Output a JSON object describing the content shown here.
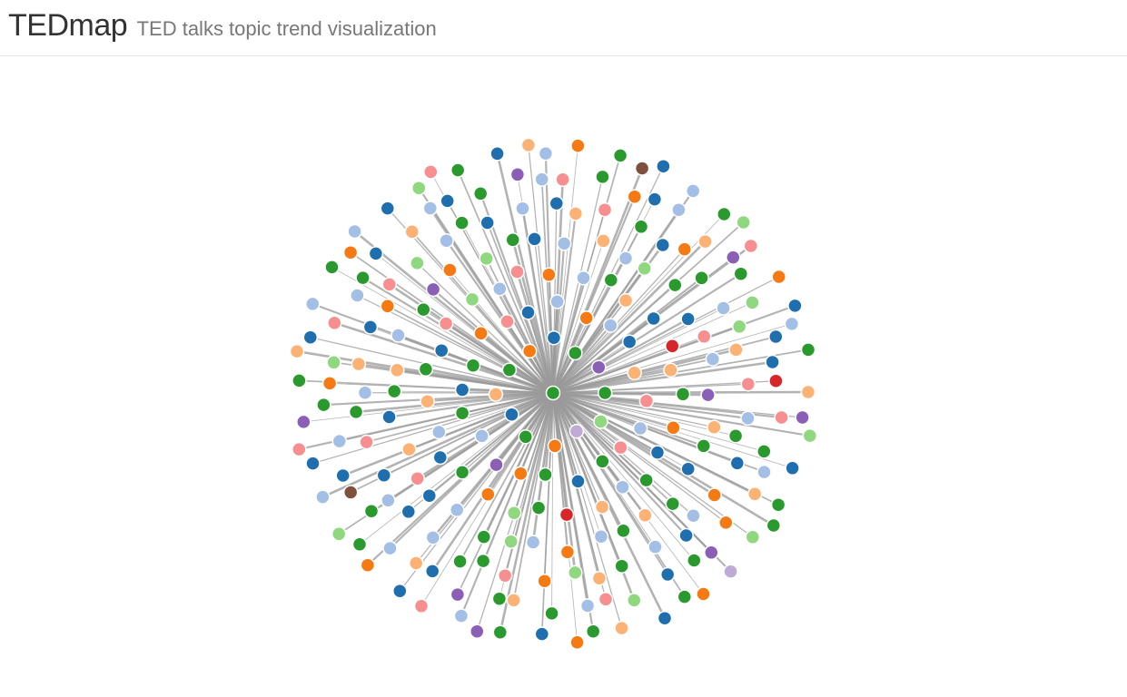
{
  "header": {
    "brand": "TEDmap",
    "tagline": "TED talks topic trend visualization"
  },
  "palette": {
    "dark_blue": "#1f6faf",
    "light_blue": "#a4bfe6",
    "green": "#2b9a2e",
    "light_green": "#8fd87f",
    "orange": "#f57a13",
    "light_orange": "#fcb274",
    "red": "#d7262a",
    "pink": "#f78e8f",
    "purple": "#8b5fb6",
    "lavender": "#c0aad6",
    "brown": "#80503e",
    "link": "#9a9a9a",
    "node_stroke": "#ffffff"
  },
  "graph": {
    "center_color": "green",
    "node_colors": [
      "green",
      "light_green",
      "lavender",
      "orange",
      "green",
      "dark_blue",
      "light_orange",
      "green",
      "orange",
      "dark_blue",
      "green",
      "purple",
      "light_blue",
      "pink",
      "green",
      "dark_blue",
      "green",
      "orange",
      "purple",
      "light_blue",
      "green",
      "dark_blue",
      "green",
      "orange",
      "pink",
      "dark_blue",
      "light_blue",
      "orange",
      "light_blue",
      "dark_blue",
      "light_orange",
      "pink",
      "green",
      "light_blue",
      "light_orange",
      "red",
      "green",
      "light_green",
      "orange",
      "green",
      "dark_blue",
      "light_blue",
      "light_orange",
      "green",
      "dark_blue",
      "pink",
      "light_green",
      "light_blue",
      "pink",
      "orange",
      "light_blue",
      "green",
      "light_orange",
      "dark_blue",
      "red",
      "light_orange",
      "green",
      "orange",
      "dark_blue",
      "green",
      "light_blue",
      "orange",
      "light_blue",
      "light_green",
      "green",
      "light_blue",
      "dark_blue",
      "pink",
      "light_orange",
      "dark_blue",
      "green",
      "light_orange",
      "light_blue",
      "green",
      "purple",
      "orange",
      "light_green",
      "green",
      "dark_blue",
      "light_blue",
      "light_orange",
      "light_blue",
      "light_green",
      "green",
      "dark_blue",
      "pink",
      "light_blue",
      "purple",
      "light_orange",
      "green",
      "dark_blue",
      "green",
      "light_orange",
      "light_green",
      "orange",
      "pink",
      "green",
      "green",
      "light_blue",
      "dark_blue",
      "light_blue",
      "dark_blue",
      "pink",
      "green",
      "light_blue",
      "light_orange",
      "dark_blue",
      "orange",
      "pink",
      "light_green",
      "light_blue",
      "green",
      "dark_blue",
      "light_blue",
      "dark_blue",
      "light_orange",
      "pink",
      "green",
      "dark_blue",
      "orange",
      "green",
      "light_blue",
      "light_green",
      "light_orange",
      "pink",
      "light_blue",
      "green",
      "dark_blue",
      "orange",
      "light_blue",
      "dark_blue",
      "light_blue",
      "green",
      "light_orange",
      "green",
      "purple",
      "dark_blue",
      "light_orange",
      "light_blue",
      "green",
      "brown",
      "dark_blue",
      "light_blue",
      "green",
      "orange",
      "light_green",
      "pink",
      "light_blue",
      "green",
      "dark_blue",
      "light_orange",
      "light_blue",
      "dark_blue",
      "green",
      "purple",
      "light_blue",
      "pink",
      "green",
      "orange",
      "dark_blue",
      "light_blue",
      "light_orange",
      "purple",
      "green",
      "light_green",
      "dark_blue",
      "dark_blue",
      "red",
      "pink",
      "green",
      "light_blue",
      "light_orange",
      "orange",
      "purple",
      "green",
      "dark_blue",
      "light_green",
      "pink",
      "light_blue",
      "green",
      "light_orange",
      "dark_blue",
      "orange",
      "green",
      "light_green",
      "light_blue",
      "dark_blue",
      "pink",
      "purple",
      "green",
      "light_orange",
      "dark_blue",
      "light_blue",
      "green",
      "orange",
      "light_blue",
      "dark_blue",
      "light_green",
      "pink",
      "green",
      "dark_blue",
      "light_orange",
      "light_blue",
      "orange",
      "green",
      "brown",
      "dark_blue",
      "light_blue",
      "green",
      "light_green",
      "pink",
      "orange",
      "dark_blue",
      "light_blue",
      "green",
      "light_orange",
      "purple",
      "light_green",
      "dark_blue",
      "green"
    ]
  }
}
